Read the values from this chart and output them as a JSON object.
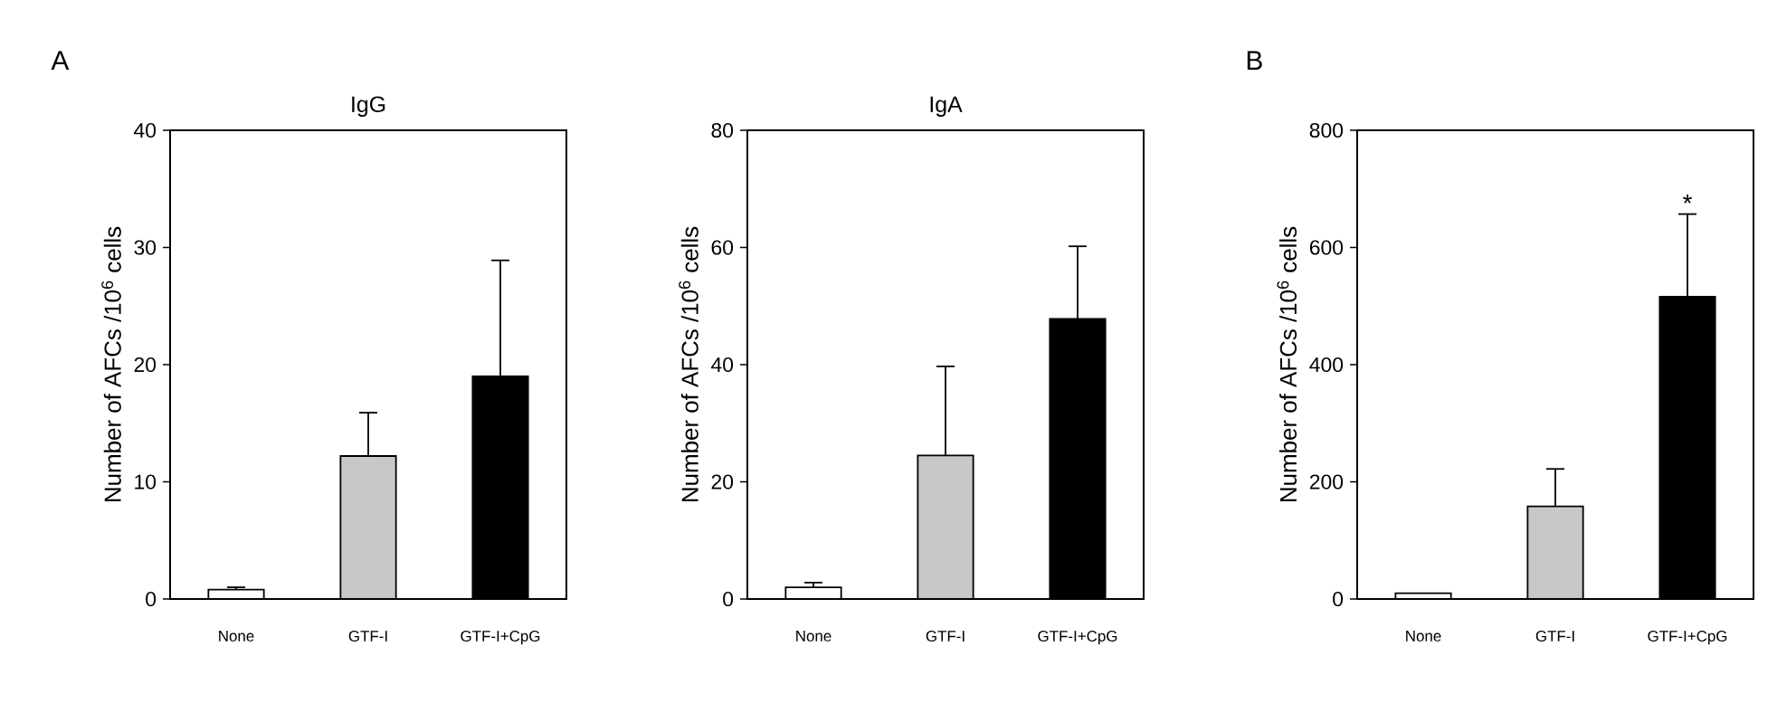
{
  "chart_data": [
    {
      "type": "bar",
      "title": "IgG",
      "ylabel": "Number of AFCs /10$^{6}$ cells",
      "categories": [
        "None",
        "GTF-I",
        "GTF-I+CpG"
      ],
      "values": [
        0.8,
        12.2,
        19.0
      ],
      "errors": [
        0.2,
        3.7,
        9.9
      ],
      "colors": [
        "#ffffff",
        "#c8c8c8",
        "#000000"
      ],
      "ylim": [
        0,
        40
      ],
      "yticks": [
        0,
        10,
        20,
        30,
        40
      ],
      "annotations": [
        "A"
      ]
    },
    {
      "type": "bar",
      "title": "IgA",
      "ylabel": "Number of AFCs /10$^{6}$ cells",
      "categories": [
        "None",
        "GTF-I",
        "GTF-I+CpG"
      ],
      "values": [
        2.0,
        24.5,
        47.8
      ],
      "errors": [
        0.8,
        15.2,
        12.4
      ],
      "colors": [
        "#ffffff",
        "#c8c8c8",
        "#000000"
      ],
      "ylim": [
        0,
        80
      ],
      "yticks": [
        0,
        20,
        40,
        60,
        80
      ]
    },
    {
      "type": "bar",
      "ylabel": "Number of AFCs /10$^{6}$ cells",
      "categories": [
        "None",
        "GTF-I",
        "GTF-I+CpG"
      ],
      "values": [
        10,
        158,
        516
      ],
      "errors": [
        null,
        64,
        141
      ],
      "colors": [
        "#ffffff",
        "#c8c8c8",
        "#000000"
      ],
      "ylim": [
        0,
        800
      ],
      "yticks": [
        0,
        200,
        400,
        600,
        800
      ],
      "annotations": [
        "B",
        {
          "text": "*",
          "x": "GTF-I+CpG",
          "y": 657
        }
      ]
    }
  ]
}
